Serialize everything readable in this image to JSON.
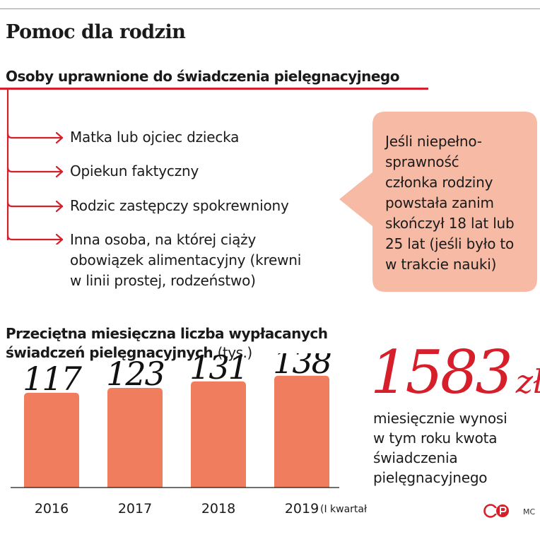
{
  "header": {
    "title": "Pomoc dla rodzin",
    "subtitle": "Osoby uprawnione do świadczenia pielęgnacyjnego"
  },
  "eligible_persons": [
    {
      "lines": [
        "Matka lub ojciec dziecka"
      ]
    },
    {
      "lines": [
        "Opiekun faktyczny"
      ]
    },
    {
      "lines": [
        "Rodzic zastępczy spokrewniony"
      ]
    },
    {
      "lines": [
        "Inna osoba, na której ciąży",
        "obowiązek alimentacyjny (krewni",
        "w linii prostej, rodzeństwo)"
      ]
    }
  ],
  "callout": {
    "lines": [
      "Jeśli niepełno-",
      "sprawność",
      "członka rodziny",
      "powstała zanim",
      "skończył 18 lat lub",
      "25 lat (jeśli było to",
      "w trakcie nauki)"
    ]
  },
  "highlight": {
    "value": "1583",
    "unit": "zł",
    "description": [
      "miesięcznie wynosi",
      "w tym roku kwota",
      "świadczenia",
      "pielęgnacyjnego"
    ]
  },
  "chart_data": {
    "type": "bar",
    "title": "Przeciętna miesięczna liczba wypłacanych świadczeń pielęgnacyjnych",
    "title_line1": "Przeciętna miesięczna liczba wypłacanych",
    "title_line2": "świadczeń pielęgnacyjnych",
    "unit": "(tys.)",
    "categories": [
      "2016",
      "2017",
      "2018",
      "2019"
    ],
    "category_notes": [
      "",
      "",
      "",
      "(I kwartał)"
    ],
    "values": [
      117,
      123,
      131,
      138
    ],
    "value_labels": [
      "117",
      "123",
      "131",
      "138"
    ],
    "ylim": [
      0,
      150
    ],
    "bar_color": "#f07e5e",
    "grid": false,
    "legend": false
  },
  "colors": {
    "accent_red": "#d71f2b",
    "callout_fill": "#f7bba5",
    "bar": "#f07e5e"
  },
  "logo": {
    "icon": "cp-publisher-logo"
  },
  "credit": "MC"
}
